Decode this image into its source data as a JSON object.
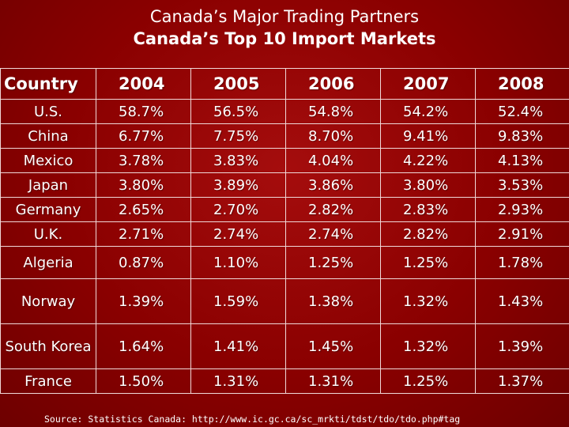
{
  "header": {
    "title": "Canada’s Major Trading Partners",
    "subtitle": "Canada’s Top 10 Import Markets"
  },
  "table": {
    "columns": [
      "Country",
      "2004",
      "2005",
      "2006",
      "2007",
      "2008"
    ],
    "rows": [
      {
        "country": "U.S.",
        "values": [
          "58.7%",
          "56.5%",
          "54.8%",
          "54.2%",
          "52.4%"
        ]
      },
      {
        "country": "China",
        "values": [
          "6.77%",
          "7.75%",
          "8.70%",
          "9.41%",
          "9.83%"
        ]
      },
      {
        "country": "Mexico",
        "values": [
          "3.78%",
          "3.83%",
          "4.04%",
          "4.22%",
          "4.13%"
        ]
      },
      {
        "country": "Japan",
        "values": [
          "3.80%",
          "3.89%",
          "3.86%",
          "3.80%",
          "3.53%"
        ]
      },
      {
        "country": "Germany",
        "values": [
          "2.65%",
          "2.70%",
          "2.82%",
          "2.83%",
          "2.93%"
        ]
      },
      {
        "country": "U.K.",
        "values": [
          "2.71%",
          "2.74%",
          "2.74%",
          "2.82%",
          "2.91%"
        ]
      },
      {
        "country": "Algeria",
        "values": [
          "0.87%",
          "1.10%",
          "1.25%",
          "1.25%",
          "1.78%"
        ]
      },
      {
        "country": "Norway",
        "values": [
          "1.39%",
          "1.59%",
          "1.38%",
          "1.32%",
          "1.43%"
        ]
      },
      {
        "country": "South Korea",
        "values": [
          "1.64%",
          "1.41%",
          "1.45%",
          "1.32%",
          "1.39%"
        ]
      },
      {
        "country": "France",
        "values": [
          "1.50%",
          "1.31%",
          "1.31%",
          "1.25%",
          "1.37%"
        ]
      }
    ]
  },
  "source": "Source:  Statistics Canada: http://www.ic.gc.ca/sc_mrkti/tdst/tdo/tdo.php#tag",
  "colors": {
    "background": "#8b0000",
    "text": "#ffffff",
    "grid": "#f0d8d8"
  }
}
